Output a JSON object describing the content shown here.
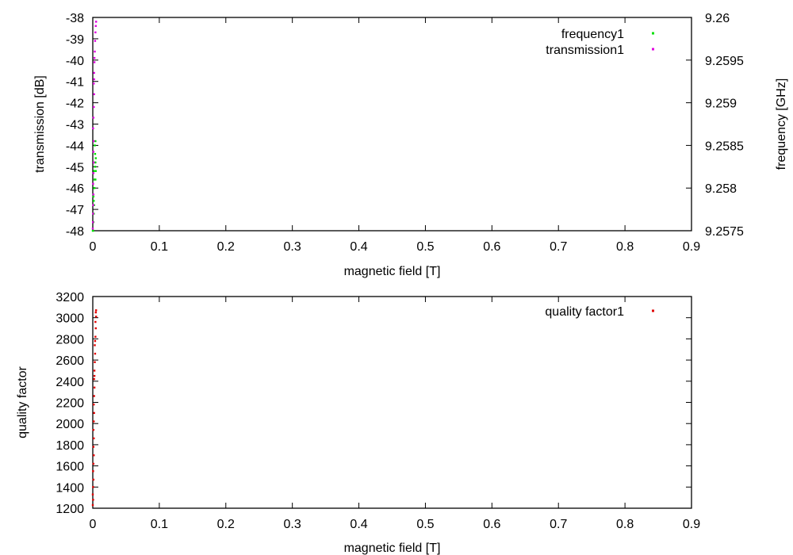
{
  "colors": {
    "frequency": "#00e000",
    "transmission": "#e000e0",
    "quality": "#e00000"
  },
  "chart_data": [
    {
      "type": "scatter",
      "xlabel": "magnetic field [T]",
      "ylabel": "transmission [dB]",
      "y2label": "frequency [GHz]",
      "xlim": [
        0,
        0.9
      ],
      "ylim": [
        -48,
        -38
      ],
      "y2lim": [
        9.2575,
        9.26
      ],
      "xticks": [
        "0",
        "0.1",
        "0.2",
        "0.3",
        "0.4",
        "0.5",
        "0.6",
        "0.7",
        "0.8",
        "0.9"
      ],
      "yticks": [
        "-38",
        "-39",
        "-40",
        "-41",
        "-42",
        "-43",
        "-44",
        "-45",
        "-46",
        "-47",
        "-48"
      ],
      "y2ticks": [
        "9.26",
        "9.2595",
        "9.259",
        "9.2585",
        "9.258",
        "9.2575"
      ],
      "legend_position": "top-right",
      "series": [
        {
          "name": "frequency1",
          "axis": "y2",
          "color": "#00e000",
          "points": [
            [
              0.0,
              9.2575
            ],
            [
              0.0005,
              9.2575
            ],
            [
              0.001,
              9.2576
            ],
            [
              0.0015,
              9.2577
            ],
            [
              0.002,
              9.2578
            ],
            [
              0.001,
              9.2579
            ],
            [
              0.002,
              9.258
            ],
            [
              0.0025,
              9.2581
            ],
            [
              0.002,
              9.2582
            ],
            [
              0.003,
              9.2583
            ],
            [
              0.0035,
              9.2584
            ],
            [
              0.003,
              9.2585
            ],
            [
              0.004,
              9.25855
            ],
            [
              0.004,
              9.2581
            ],
            [
              0.004,
              9.2583
            ],
            [
              0.0045,
              9.2582
            ],
            [
              0.0045,
              9.25835
            ],
            [
              0.0035,
              9.25825
            ],
            [
              0.0025,
              9.258
            ],
            [
              0.0015,
              9.25785
            ]
          ]
        },
        {
          "name": "transmission1",
          "axis": "y",
          "color": "#e000e0",
          "points": [
            [
              0.0,
              -47.9
            ],
            [
              0.0003,
              -47.6
            ],
            [
              0.0005,
              -47.2
            ],
            [
              0.0008,
              -46.8
            ],
            [
              0.001,
              -46.3
            ],
            [
              0.0005,
              -45.8
            ],
            [
              0.001,
              -45.3
            ],
            [
              0.0015,
              -44.8
            ],
            [
              0.001,
              -44.3
            ],
            [
              0.0015,
              -43.8
            ],
            [
              0.0005,
              -43.2
            ],
            [
              0.001,
              -42.7
            ],
            [
              0.0015,
              -42.2
            ],
            [
              0.002,
              -41.6
            ],
            [
              0.0015,
              -41.1
            ],
            [
              0.002,
              -40.6
            ],
            [
              0.0025,
              -40.1
            ],
            [
              0.003,
              -39.6
            ],
            [
              0.0035,
              -39.1
            ],
            [
              0.004,
              -38.7
            ],
            [
              0.0045,
              -38.4
            ],
            [
              0.005,
              -38.2
            ],
            [
              0.0025,
              -39.9
            ],
            [
              0.002,
              -40.9
            ]
          ]
        }
      ]
    },
    {
      "type": "scatter",
      "xlabel": "magnetic field [T]",
      "ylabel": "quality factor",
      "xlim": [
        0,
        0.9
      ],
      "ylim": [
        1200,
        3200
      ],
      "xticks": [
        "0",
        "0.1",
        "0.2",
        "0.3",
        "0.4",
        "0.5",
        "0.6",
        "0.7",
        "0.8",
        "0.9"
      ],
      "yticks": [
        "3200",
        "3000",
        "2800",
        "2600",
        "2400",
        "2200",
        "2000",
        "1800",
        "1600",
        "1400",
        "1200"
      ],
      "legend_position": "top-right",
      "series": [
        {
          "name": "quality factor1",
          "color": "#e00000",
          "points": [
            [
              0.0,
              1230
            ],
            [
              0.0005,
              1280
            ],
            [
              0.0,
              1330
            ],
            [
              0.0005,
              1400
            ],
            [
              0.001,
              1470
            ],
            [
              0.0005,
              1550
            ],
            [
              0.001,
              1620
            ],
            [
              0.0015,
              1700
            ],
            [
              0.001,
              1780
            ],
            [
              0.0015,
              1860
            ],
            [
              0.001,
              1940
            ],
            [
              0.0015,
              2020
            ],
            [
              0.002,
              2100
            ],
            [
              0.0015,
              2180
            ],
            [
              0.002,
              2260
            ],
            [
              0.0025,
              2340
            ],
            [
              0.002,
              2420
            ],
            [
              0.0025,
              2500
            ],
            [
              0.003,
              2580
            ],
            [
              0.0035,
              2660
            ],
            [
              0.003,
              2740
            ],
            [
              0.004,
              2820
            ],
            [
              0.0045,
              2900
            ],
            [
              0.004,
              2960
            ],
            [
              0.005,
              3010
            ],
            [
              0.0045,
              3050
            ],
            [
              0.005,
              3070
            ],
            [
              0.0035,
              2780
            ],
            [
              0.0025,
              2450
            ]
          ]
        }
      ]
    }
  ]
}
